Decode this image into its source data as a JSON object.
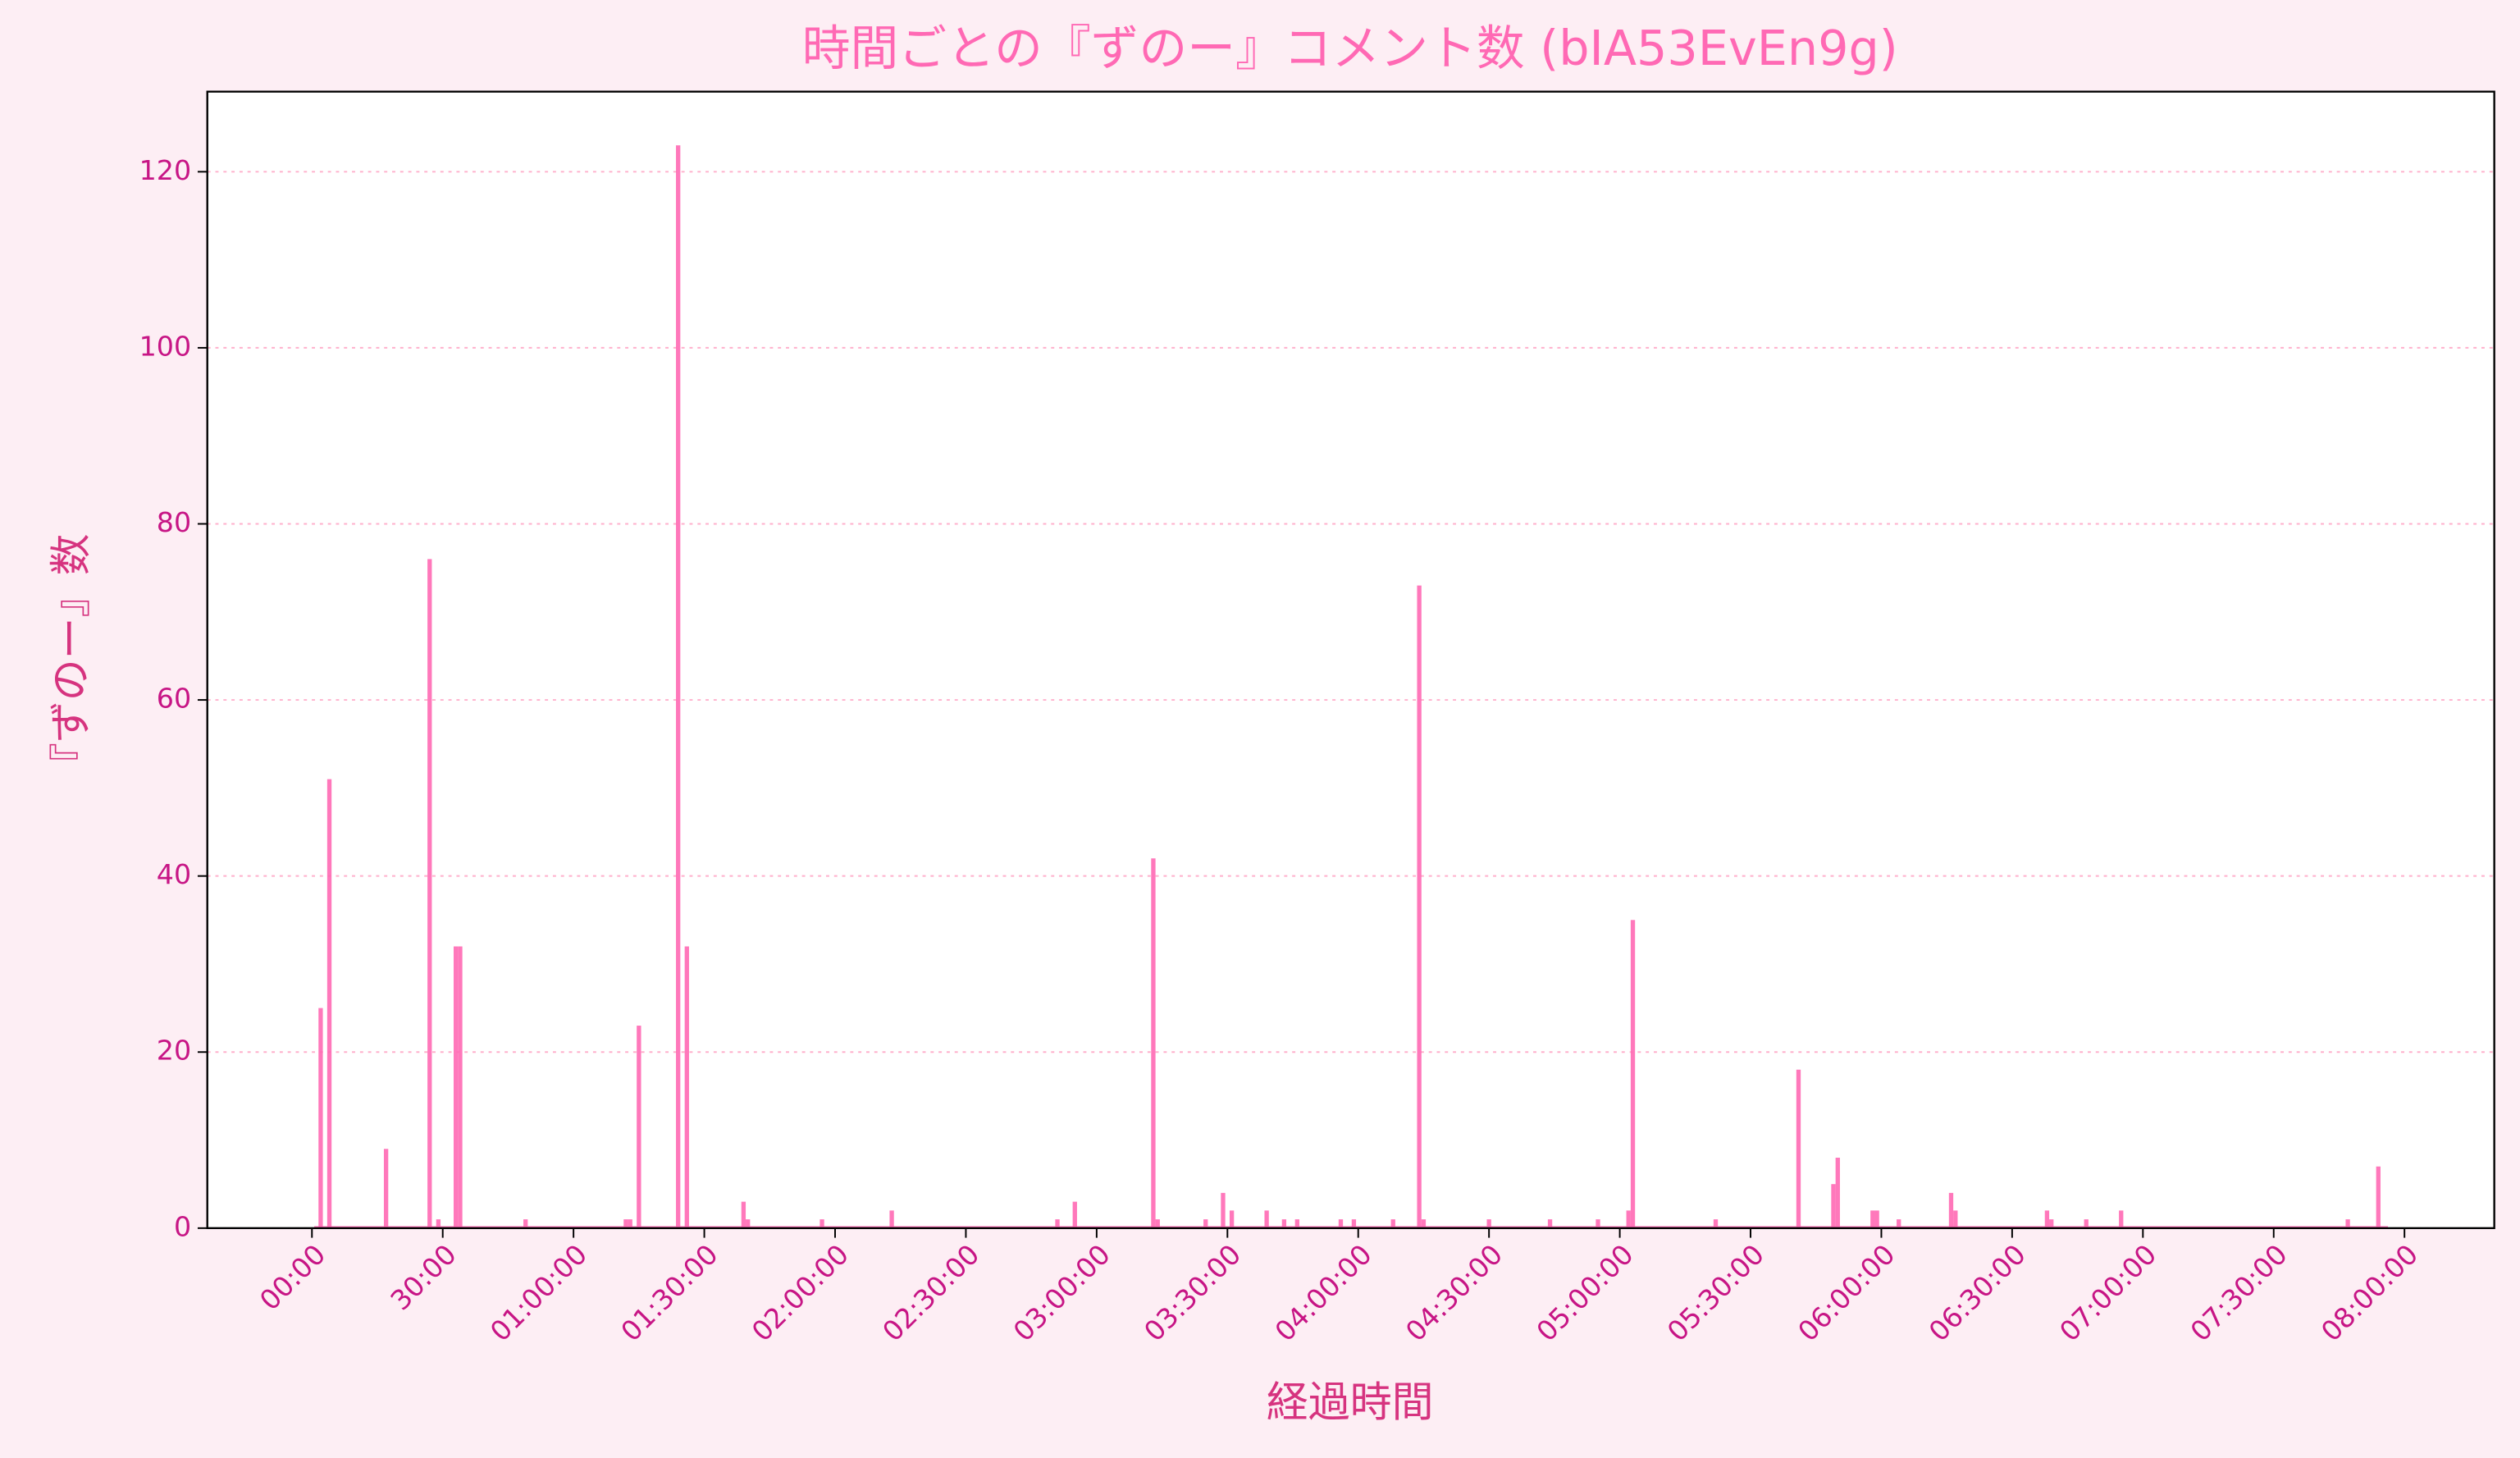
{
  "chart_data": {
    "type": "bar",
    "title": "時間ごとの『ずのー』コメント数 (bIA53EvEn9g)",
    "x_label": "経過時間",
    "y_label": "『ずのー』数",
    "x": [
      2,
      4,
      17,
      27,
      29,
      33,
      34,
      49,
      72,
      73,
      75,
      84,
      86,
      99,
      100,
      117,
      133,
      171,
      175,
      193,
      194,
      205,
      209,
      211,
      219,
      223,
      226,
      236,
      239,
      248,
      254,
      255,
      270,
      284,
      295,
      302,
      303,
      322,
      341,
      349,
      350,
      358,
      359,
      364,
      376,
      377,
      398,
      399,
      407,
      415,
      467,
      474
    ],
    "values": [
      25,
      51,
      9,
      76,
      1,
      32,
      32,
      1,
      1,
      1,
      23,
      123,
      32,
      3,
      1,
      1,
      2,
      1,
      3,
      42,
      1,
      1,
      4,
      2,
      2,
      1,
      1,
      1,
      1,
      1,
      73,
      1,
      1,
      1,
      1,
      2,
      35,
      1,
      18,
      5,
      8,
      2,
      2,
      1,
      4,
      2,
      2,
      1,
      1,
      2,
      1,
      7
    ],
    "color": "#ff69b4",
    "xlim": [
      -24,
      500.6
    ],
    "ylim": [
      0,
      129.1
    ],
    "xticks": [
      {
        "value": 0,
        "label": "00:00"
      },
      {
        "value": 30,
        "label": "30:00"
      },
      {
        "value": 60,
        "label": "01:00:00"
      },
      {
        "value": 90,
        "label": "01:30:00"
      },
      {
        "value": 120,
        "label": "02:00:00"
      },
      {
        "value": 150,
        "label": "02:30:00"
      },
      {
        "value": 180,
        "label": "03:00:00"
      },
      {
        "value": 210,
        "label": "03:30:00"
      },
      {
        "value": 240,
        "label": "04:00:00"
      },
      {
        "value": 270,
        "label": "04:30:00"
      },
      {
        "value": 300,
        "label": "05:00:00"
      },
      {
        "value": 330,
        "label": "05:30:00"
      },
      {
        "value": 360,
        "label": "06:00:00"
      },
      {
        "value": 390,
        "label": "06:30:00"
      },
      {
        "value": 420,
        "label": "07:00:00"
      },
      {
        "value": 450,
        "label": "07:30:00"
      },
      {
        "value": 480,
        "label": "08:00:00"
      }
    ],
    "yticks": [
      0,
      20,
      40,
      60,
      80,
      100,
      120
    ],
    "grid": true
  }
}
